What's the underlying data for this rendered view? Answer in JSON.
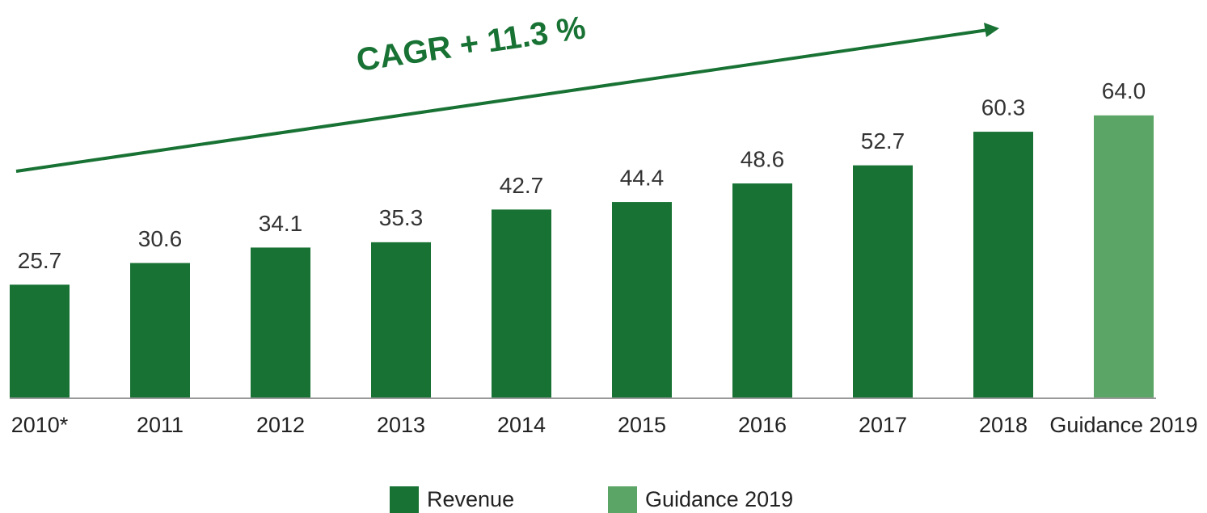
{
  "chart_data": {
    "type": "bar",
    "annotation": "CAGR + 11.3 %",
    "categories": [
      "2010*",
      "2011",
      "2012",
      "2013",
      "2014",
      "2015",
      "2016",
      "2017",
      "2018",
      "Guidance 2019"
    ],
    "series": [
      {
        "name": "Revenue",
        "color": "#187234",
        "values": [
          25.7,
          30.6,
          34.1,
          35.3,
          42.7,
          44.4,
          48.6,
          52.7,
          60.3,
          null
        ]
      },
      {
        "name": "Guidance 2019",
        "color": "#5ba567",
        "values": [
          null,
          null,
          null,
          null,
          null,
          null,
          null,
          null,
          null,
          64
        ],
        "value_labels": [
          null,
          null,
          null,
          null,
          null,
          null,
          null,
          null,
          null,
          "64.0"
        ]
      }
    ],
    "ylim": [
      0,
      70
    ],
    "legend": "bottom"
  }
}
